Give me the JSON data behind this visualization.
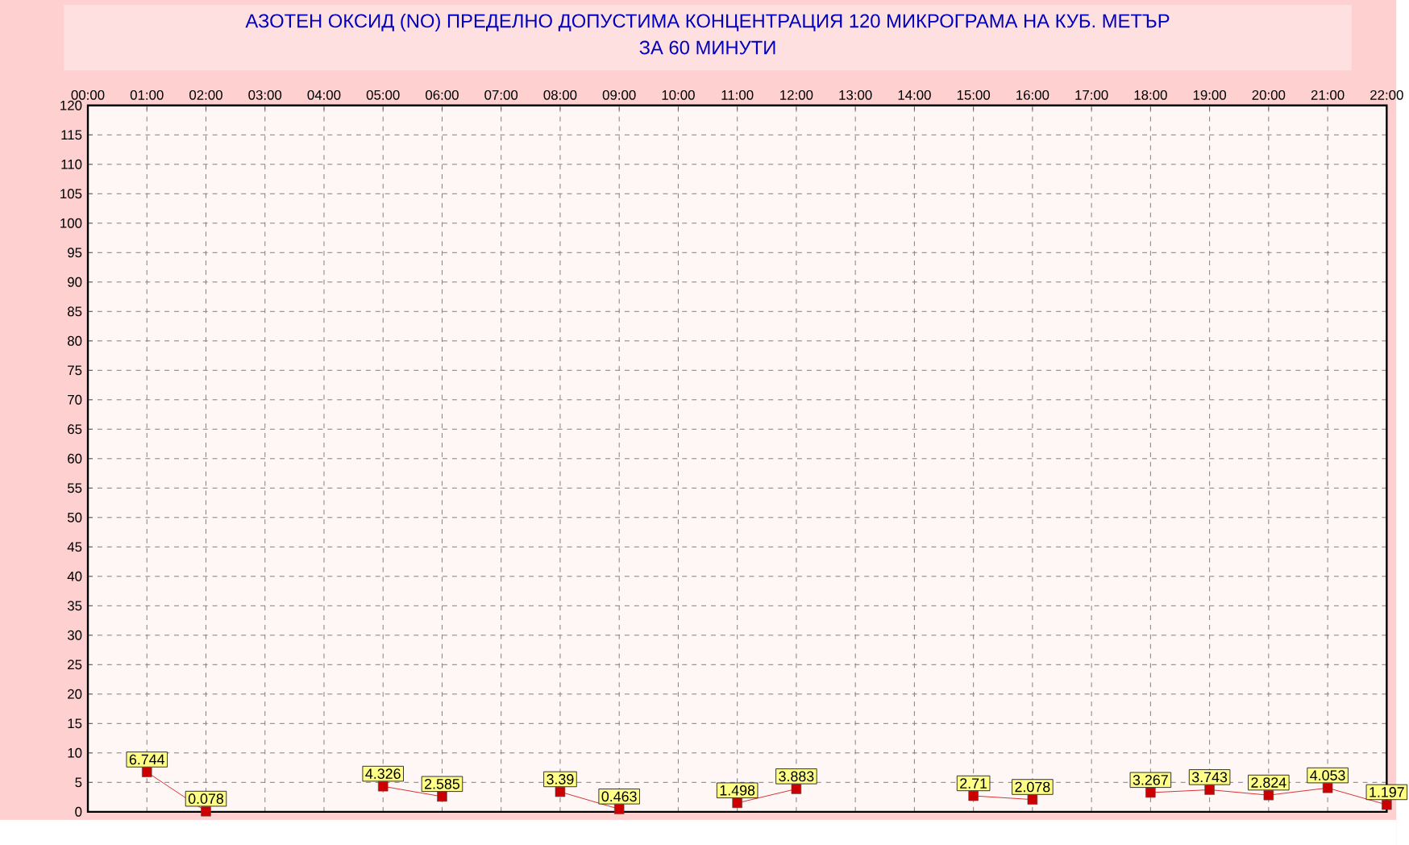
{
  "chart_data": {
    "type": "line",
    "title": "АЗОТЕН ОКСИД   (NO)     ПРЕДЕЛНО ДОПУСТИМА КОНЦЕНТРАЦИЯ 120 МИКРОГРАМА  НА КУБ. МЕТЪР",
    "subtitle": "ЗА 60 МИНУТИ",
    "x": [
      1,
      2,
      3,
      4,
      5,
      6,
      7,
      8,
      9,
      10,
      11,
      12,
      13,
      14,
      15,
      16,
      17,
      18,
      19,
      20,
      21,
      22
    ],
    "series": [
      {
        "color": "#cc0000",
        "values": [
          6.744,
          0.078,
          null,
          null,
          4.326,
          2.585,
          null,
          3.39,
          0.463,
          null,
          1.498,
          3.883,
          null,
          null,
          2.71,
          2.078,
          null,
          3.267,
          3.743,
          2.824,
          4.053,
          1.197
        ]
      }
    ],
    "xlim": [
      0,
      22
    ],
    "xticks": [
      {
        "value": 0,
        "label": "00:00"
      },
      {
        "value": 1,
        "label": "01:00"
      },
      {
        "value": 2,
        "label": "02:00"
      },
      {
        "value": 3,
        "label": "03:00"
      },
      {
        "value": 4,
        "label": "04:00"
      },
      {
        "value": 5,
        "label": "05:00"
      },
      {
        "value": 6,
        "label": "06:00"
      },
      {
        "value": 7,
        "label": "07:00"
      },
      {
        "value": 8,
        "label": "08:00"
      },
      {
        "value": 9,
        "label": "09:00"
      },
      {
        "value": 10,
        "label": "10:00"
      },
      {
        "value": 11,
        "label": "11:00"
      },
      {
        "value": 12,
        "label": "12:00"
      },
      {
        "value": 13,
        "label": "13:00"
      },
      {
        "value": 14,
        "label": "14:00"
      },
      {
        "value": 15,
        "label": "15:00"
      },
      {
        "value": 16,
        "label": "16:00"
      },
      {
        "value": 17,
        "label": "17:00"
      },
      {
        "value": 18,
        "label": "18:00"
      },
      {
        "value": 19,
        "label": "19:00"
      },
      {
        "value": 20,
        "label": "20:00"
      },
      {
        "value": 21,
        "label": "21:00"
      },
      {
        "value": 22,
        "label": "22:00"
      }
    ],
    "ylim": [
      0,
      120
    ],
    "yticks": [
      0,
      5,
      10,
      15,
      20,
      25,
      30,
      35,
      40,
      45,
      50,
      55,
      60,
      65,
      70,
      75,
      80,
      85,
      90,
      95,
      100,
      105,
      110,
      115,
      120
    ],
    "grid": true,
    "marker": "square",
    "line_style": "solid",
    "data_labels": true
  }
}
